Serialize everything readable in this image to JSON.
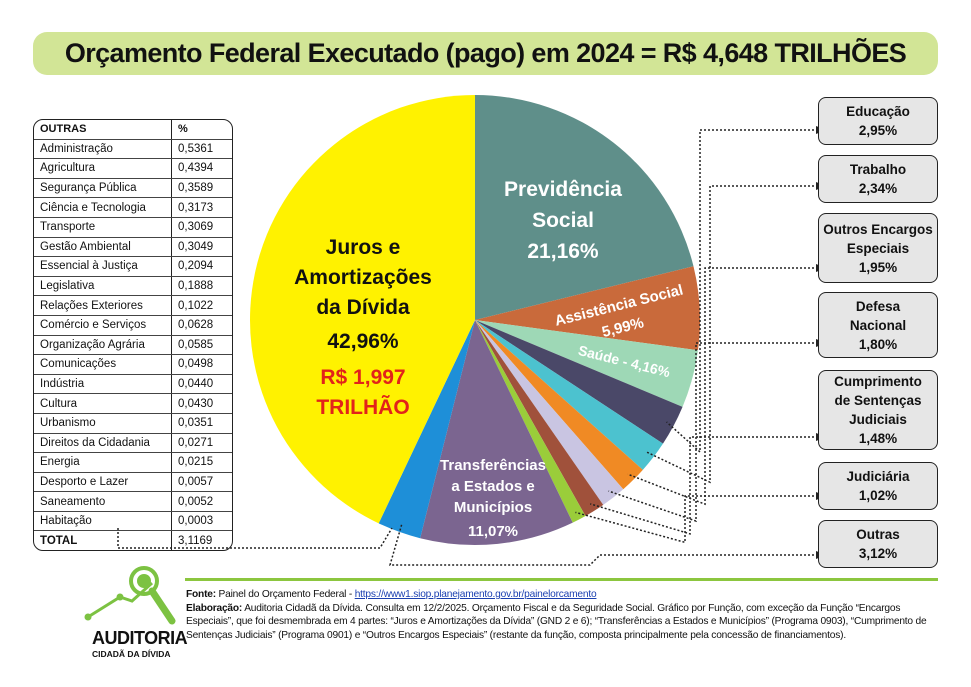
{
  "title": "Orçamento Federal Executado (pago) em 2024 = R$ 4,648 TRILHÕES",
  "outras_table": {
    "headers": [
      "OUTRAS",
      "%"
    ],
    "rows": [
      [
        "Administração",
        "0,5361"
      ],
      [
        "Agricultura",
        "0,4394"
      ],
      [
        "Segurança Pública",
        "0,3589"
      ],
      [
        "Ciência e Tecnologia",
        "0,3173"
      ],
      [
        "Transporte",
        "0,3069"
      ],
      [
        "Gestão Ambiental",
        "0,3049"
      ],
      [
        "Essencial à Justiça",
        "0,2094"
      ],
      [
        "Legislativa",
        "0,1888"
      ],
      [
        "Relações Exteriores",
        "0,1022"
      ],
      [
        "Comércio e Serviços",
        "0,0628"
      ],
      [
        "Organização Agrária",
        "0,0585"
      ],
      [
        "Comunicações",
        "0,0498"
      ],
      [
        "Indústria",
        "0,0440"
      ],
      [
        "Cultura",
        "0,0430"
      ],
      [
        "Urbanismo",
        "0,0351"
      ],
      [
        "Direitos da Cidadania",
        "0,0271"
      ],
      [
        "Energia",
        "0,0215"
      ],
      [
        "Desporto e Lazer",
        "0,0057"
      ],
      [
        "Saneamento",
        "0,0052"
      ],
      [
        "Habitação",
        "0,0003"
      ]
    ],
    "total": [
      "TOTAL",
      "3,1169"
    ]
  },
  "chart_data": {
    "type": "pie",
    "title": "Orçamento Federal Executado (pago) em 2024 = R$ 4,648 TRILHÕES",
    "start": "top",
    "direction": "clockwise",
    "slices": [
      {
        "label": "Previdência Social",
        "value": 21.16,
        "display": "21,16%",
        "color": "#5f8f8a"
      },
      {
        "label": "Assistência Social",
        "value": 5.99,
        "display": "5,99%",
        "color": "#c96a3b"
      },
      {
        "label": "Saúde",
        "value": 4.16,
        "display": "Saúde - 4,16%",
        "color": "#9ed8b6"
      },
      {
        "label": "Educação",
        "value": 2.95,
        "display": "2,95%",
        "color": "#4a4868"
      },
      {
        "label": "Trabalho",
        "value": 2.34,
        "display": "2,34%",
        "color": "#4cc2cf"
      },
      {
        "label": "Outros Encargos Especiais",
        "value": 1.95,
        "display": "1,95%",
        "color": "#f08a24"
      },
      {
        "label": "Defesa Nacional",
        "value": 1.8,
        "display": "1,80%",
        "color": "#c9c5e2"
      },
      {
        "label": "Cumprimento de Sentenças Judiciais",
        "value": 1.48,
        "display": "1,48%",
        "color": "#a0513b"
      },
      {
        "label": "Judiciária",
        "value": 1.02,
        "display": "1,02%",
        "color": "#9acd3a"
      },
      {
        "label": "Transferências a Estados e Municípios",
        "value": 11.07,
        "display": "11,07%",
        "color": "#7b6590"
      },
      {
        "label": "Outras",
        "value": 3.12,
        "display": "3,12%",
        "color": "#1e8fd8"
      },
      {
        "label": "Juros e Amortizações da Dívida",
        "value": 42.96,
        "display": "42,96%",
        "color": "#fff200"
      }
    ],
    "inner_labels": {
      "previdencia": [
        "Previdência",
        "Social",
        "21,16%"
      ],
      "assistencia": [
        "Assistência Social",
        "5,99%"
      ],
      "saude": "Saúde - 4,16%",
      "transferencias": [
        "Transferências",
        "a Estados e",
        "Municípios",
        "11,07%"
      ],
      "juros": [
        "Juros e",
        "Amortizações",
        "da Dívida",
        "42,96%"
      ],
      "juros_value": [
        "R$ 1,997",
        "TRILHÃO"
      ]
    },
    "callouts": [
      {
        "lines": [
          "Educação",
          "2,95%"
        ]
      },
      {
        "lines": [
          "Trabalho",
          "2,34%"
        ]
      },
      {
        "lines": [
          "Outros Encargos",
          "Especiais",
          "1,95%"
        ]
      },
      {
        "lines": [
          "Defesa",
          "Nacional",
          "1,80%"
        ]
      },
      {
        "lines": [
          "Cumprimento",
          "de Sentenças",
          "Judiciais",
          "1,48%"
        ]
      },
      {
        "lines": [
          "Judiciária",
          "1,02%"
        ]
      },
      {
        "lines": [
          "Outras",
          "3,12%"
        ]
      }
    ]
  },
  "logo": {
    "line1": "AUDITORIA",
    "line2": "CIDADÃ DA DÍVIDA"
  },
  "footer": {
    "fonte_label": "Fonte:",
    "fonte_text": " Painel do Orçamento Federal - ",
    "fonte_link": "https://www1.siop.planejamento.gov.br/painelorcamento",
    "elab_label": "Elaboração:",
    "elab_text": " Auditoria Cidadã da Dívida. Consulta em 12/2/2025. Orçamento Fiscal e da Seguridade Social. Gráfico por Função, com exceção da Função “Encargos Especiais”, que foi desmembrada em 4 partes: “Juros e Amortizações da Dívida” (GND 2 e 6); “Transferências a Estados e Municípios” (Programa 0903), “Cumprimento de Sentenças Judiciais” (Programa 0901) e “Outros Encargos Especiais” (restante da função, composta principalmente pela concessão de financiamentos)."
  }
}
